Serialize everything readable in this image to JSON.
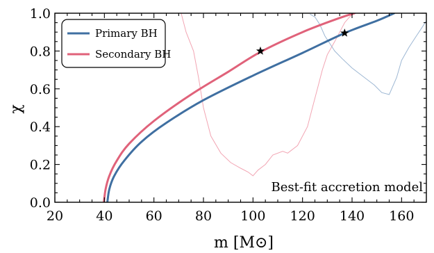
{
  "chart_data": {
    "type": "line",
    "xlabel": "m [M⊙]",
    "ylabel": "χ",
    "xlim": [
      20,
      170
    ],
    "ylim": [
      0.0,
      1.0
    ],
    "xticks": [
      20,
      40,
      60,
      80,
      100,
      120,
      140,
      160
    ],
    "yticks": [
      0.0,
      0.2,
      0.4,
      0.6,
      0.8,
      1.0
    ],
    "xtick_labels": [
      "20",
      "40",
      "60",
      "80",
      "100",
      "120",
      "140",
      "160"
    ],
    "ytick_labels": [
      "0.0",
      "0.2",
      "0.4",
      "0.6",
      "0.8",
      "1.0"
    ],
    "grid": false,
    "legend_position": "top-left",
    "annotation": "Best-fit accretion model",
    "series": [
      {
        "name": "Primary BH",
        "color": "#3f6fa1",
        "x": [
          41.2,
          42,
          44,
          48,
          55,
          65,
          80,
          100,
          120,
          137,
          150,
          157
        ],
        "y": [
          0.0,
          0.07,
          0.14,
          0.22,
          0.32,
          0.42,
          0.54,
          0.67,
          0.79,
          0.895,
          0.96,
          1.0
        ]
      },
      {
        "name": "Secondary BH",
        "color": "#e0627a",
        "x": [
          39.8,
          40.5,
          42,
          45,
          50,
          60,
          75,
          90,
          103,
          120,
          135,
          141
        ],
        "y": [
          0.0,
          0.07,
          0.14,
          0.22,
          0.31,
          0.43,
          0.57,
          0.69,
          0.795,
          0.9,
          0.975,
          1.0
        ]
      }
    ],
    "best_fit_points": [
      {
        "x": 103,
        "y": 0.8
      },
      {
        "x": 137,
        "y": 0.895
      }
    ],
    "contours": [
      {
        "color": "#f2a5b3",
        "x": [
          71,
          73,
          76,
          78,
          80,
          83,
          87,
          91,
          95,
          98,
          100,
          102,
          105,
          108,
          112,
          114,
          118,
          122,
          124,
          126,
          128,
          130,
          133,
          135,
          137,
          139,
          141
        ],
        "y": [
          1.0,
          0.9,
          0.8,
          0.66,
          0.5,
          0.35,
          0.26,
          0.21,
          0.18,
          0.16,
          0.14,
          0.17,
          0.2,
          0.25,
          0.27,
          0.26,
          0.3,
          0.4,
          0.5,
          0.6,
          0.7,
          0.78,
          0.85,
          0.9,
          0.95,
          0.98,
          1.0
        ]
      },
      {
        "color": "#9db7d3",
        "x": [
          123,
          125,
          127,
          129,
          131,
          133,
          136,
          140,
          145,
          149,
          152,
          155,
          158,
          160,
          163,
          166,
          168,
          170
        ],
        "y": [
          0.995,
          0.98,
          0.94,
          0.88,
          0.84,
          0.8,
          0.76,
          0.71,
          0.66,
          0.62,
          0.58,
          0.57,
          0.66,
          0.75,
          0.82,
          0.88,
          0.92,
          0.96
        ]
      }
    ]
  }
}
